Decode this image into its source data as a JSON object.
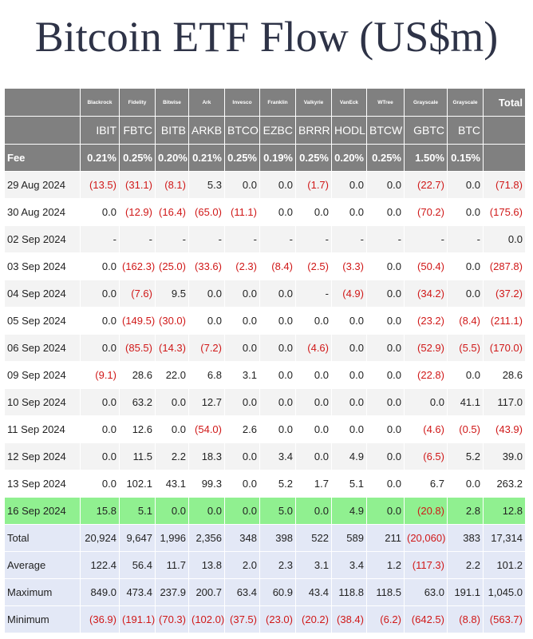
{
  "page": {
    "title": "Bitcoin ETF Flow (US$m)"
  },
  "colors": {
    "header_bg": "#808080",
    "header_text": "#ffffff",
    "row_alt_bg": "#f3f3f3",
    "highlight_row_bg": "#90f090",
    "summary_bg": "#e3e8f6",
    "negative_text": "#d01818",
    "title_text": "#2e3347"
  },
  "table": {
    "providers": [
      "Blackrock",
      "Fidelity",
      "Bitwise",
      "Ark",
      "Invesco",
      "Franklin",
      "Valkyrie",
      "VanEck",
      "WTree",
      "Grayscale",
      "Grayscale"
    ],
    "total_header": "Total",
    "tickers": [
      "IBIT",
      "FBTC",
      "BITB",
      "ARKB",
      "BTCO",
      "EZBC",
      "BRRR",
      "HODL",
      "BTCW",
      "GBTC",
      "BTC"
    ],
    "fee_label": "Fee",
    "fees": [
      "0.21%",
      "0.25%",
      "0.20%",
      "0.21%",
      "0.25%",
      "0.19%",
      "0.25%",
      "0.20%",
      "0.25%",
      "1.50%",
      "0.15%"
    ],
    "rows": [
      {
        "date": "29 Aug 2024",
        "cells": [
          "(13.5)",
          "(31.1)",
          "(8.1)",
          "5.3",
          "0.0",
          "0.0",
          "(1.7)",
          "0.0",
          "0.0",
          "(22.7)",
          "0.0",
          "(71.8)"
        ]
      },
      {
        "date": "30 Aug 2024",
        "cells": [
          "0.0",
          "(12.9)",
          "(16.4)",
          "(65.0)",
          "(11.1)",
          "0.0",
          "0.0",
          "0.0",
          "0.0",
          "(70.2)",
          "0.0",
          "(175.6)"
        ]
      },
      {
        "date": "02 Sep 2024",
        "cells": [
          "-",
          "-",
          "-",
          "-",
          "-",
          "-",
          "-",
          "-",
          "-",
          "-",
          "-",
          "0.0"
        ]
      },
      {
        "date": "03 Sep 2024",
        "cells": [
          "0.0",
          "(162.3)",
          "(25.0)",
          "(33.6)",
          "(2.3)",
          "(8.4)",
          "(2.5)",
          "(3.3)",
          "0.0",
          "(50.4)",
          "0.0",
          "(287.8)"
        ]
      },
      {
        "date": "04 Sep 2024",
        "cells": [
          "0.0",
          "(7.6)",
          "9.5",
          "0.0",
          "0.0",
          "0.0",
          "-",
          "(4.9)",
          "0.0",
          "(34.2)",
          "0.0",
          "(37.2)"
        ]
      },
      {
        "date": "05 Sep 2024",
        "cells": [
          "0.0",
          "(149.5)",
          "(30.0)",
          "0.0",
          "0.0",
          "0.0",
          "0.0",
          "0.0",
          "0.0",
          "(23.2)",
          "(8.4)",
          "(211.1)"
        ]
      },
      {
        "date": "06 Sep 2024",
        "cells": [
          "0.0",
          "(85.5)",
          "(14.3)",
          "(7.2)",
          "0.0",
          "0.0",
          "(4.6)",
          "0.0",
          "0.0",
          "(52.9)",
          "(5.5)",
          "(170.0)"
        ]
      },
      {
        "date": "09 Sep 2024",
        "cells": [
          "(9.1)",
          "28.6",
          "22.0",
          "6.8",
          "3.1",
          "0.0",
          "0.0",
          "0.0",
          "0.0",
          "(22.8)",
          "0.0",
          "28.6"
        ]
      },
      {
        "date": "10 Sep 2024",
        "cells": [
          "0.0",
          "63.2",
          "0.0",
          "12.7",
          "0.0",
          "0.0",
          "0.0",
          "0.0",
          "0.0",
          "0.0",
          "41.1",
          "117.0"
        ]
      },
      {
        "date": "11 Sep 2024",
        "cells": [
          "0.0",
          "12.6",
          "0.0",
          "(54.0)",
          "2.6",
          "0.0",
          "0.0",
          "0.0",
          "0.0",
          "(4.6)",
          "(0.5)",
          "(43.9)"
        ]
      },
      {
        "date": "12 Sep 2024",
        "cells": [
          "0.0",
          "11.5",
          "2.2",
          "18.3",
          "0.0",
          "3.4",
          "0.0",
          "4.9",
          "0.0",
          "(6.5)",
          "5.2",
          "39.0"
        ]
      },
      {
        "date": "13 Sep 2024",
        "cells": [
          "0.0",
          "102.1",
          "43.1",
          "99.3",
          "0.0",
          "5.2",
          "1.7",
          "5.1",
          "0.0",
          "6.7",
          "0.0",
          "263.2"
        ]
      },
      {
        "date": "16 Sep 2024",
        "highlight": true,
        "cells": [
          "15.8",
          "5.1",
          "0.0",
          "0.0",
          "0.0",
          "5.0",
          "0.0",
          "4.9",
          "0.0",
          "(20.8)",
          "2.8",
          "12.8"
        ]
      }
    ],
    "summary": [
      {
        "label": "Total",
        "cells": [
          "20,924",
          "9,647",
          "1,996",
          "2,356",
          "348",
          "398",
          "522",
          "589",
          "211",
          "(20,060)",
          "383",
          "17,314"
        ]
      },
      {
        "label": "Average",
        "cells": [
          "122.4",
          "56.4",
          "11.7",
          "13.8",
          "2.0",
          "2.3",
          "3.1",
          "3.4",
          "1.2",
          "(117.3)",
          "2.2",
          "101.2"
        ]
      },
      {
        "label": "Maximum",
        "cells": [
          "849.0",
          "473.4",
          "237.9",
          "200.7",
          "63.4",
          "60.9",
          "43.4",
          "118.8",
          "118.5",
          "63.0",
          "191.1",
          "1,045.0"
        ]
      },
      {
        "label": "Minimum",
        "cells": [
          "(36.9)",
          "(191.1)",
          "(70.3)",
          "(102.0)",
          "(37.5)",
          "(23.0)",
          "(20.2)",
          "(38.4)",
          "(6.2)",
          "(642.5)",
          "(8.8)",
          "(563.7)"
        ]
      }
    ]
  }
}
